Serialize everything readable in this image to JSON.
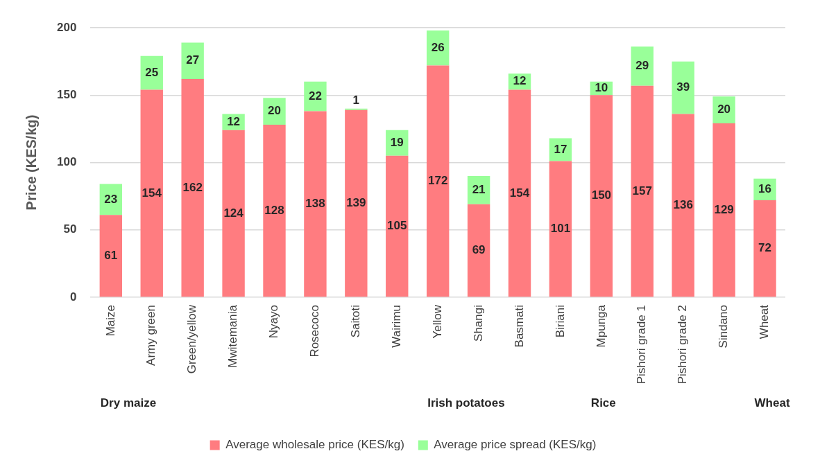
{
  "chart_data": {
    "type": "bar",
    "stacked": true,
    "ylabel": "Price (KES/kg)",
    "categories": [
      "Maize",
      "Army green",
      "Green/yellow",
      "Mwitemania",
      "Nyayo",
      "Rosecoco",
      "Saitoti",
      "Wairimu",
      "Yellow",
      "Shangi",
      "Basmati",
      "Biriani",
      "Mpunga",
      "Pishori grade 1",
      "Pishori grade 2",
      "Sindano",
      "Wheat"
    ],
    "series": [
      {
        "name": "Average wholesale price (KES/kg)",
        "color": "#ff7c80",
        "values": [
          61,
          154,
          162,
          124,
          128,
          138,
          139,
          105,
          172,
          69,
          154,
          101,
          150,
          157,
          136,
          129,
          72
        ]
      },
      {
        "name": "Average price spread (KES/kg)",
        "color": "#99ff99",
        "values": [
          23,
          25,
          27,
          12,
          20,
          22,
          1,
          19,
          26,
          21,
          12,
          17,
          10,
          29,
          39,
          20,
          16
        ]
      }
    ],
    "ylim": [
      0,
      200
    ],
    "yticks": [
      0,
      50,
      100,
      150,
      200
    ],
    "grid": "y",
    "legend": "bottom",
    "data_labels": true,
    "annotations": [
      "Dry maize",
      "Irish potatoes",
      "Rice",
      "Wheat"
    ]
  }
}
